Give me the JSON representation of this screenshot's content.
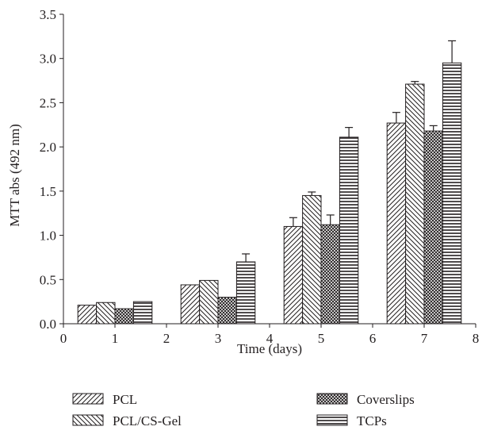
{
  "chart_data": {
    "type": "bar",
    "xlabel": "Time (days)",
    "ylabel": "MTT abs (492 nm)",
    "xlim": [
      0,
      8
    ],
    "ylim": [
      0,
      3.5
    ],
    "xticks": [
      "0",
      "1",
      "2",
      "3",
      "4",
      "5",
      "6",
      "7",
      "8"
    ],
    "yticks": [
      "0.0",
      "0.5",
      "1.0",
      "1.5",
      "2.0",
      "2.5",
      "3.0",
      "3.5"
    ],
    "x": [
      1,
      3,
      5,
      7
    ],
    "legend_position": "bottom",
    "series": [
      {
        "name": "PCL",
        "pattern": "diagonal-forward",
        "values": [
          0.21,
          0.44,
          1.1,
          2.27
        ],
        "errors": [
          0.0,
          0.0,
          0.1,
          0.12
        ]
      },
      {
        "name": "PCL/CS-Gel",
        "pattern": "diagonal-backward",
        "values": [
          0.24,
          0.49,
          1.45,
          2.71
        ],
        "errors": [
          0.0,
          0.0,
          0.04,
          0.03
        ]
      },
      {
        "name": "Coverslips",
        "pattern": "crosshatch",
        "values": [
          0.17,
          0.3,
          1.12,
          2.18
        ],
        "errors": [
          0.0,
          0.0,
          0.11,
          0.06
        ]
      },
      {
        "name": "TCPs",
        "pattern": "horizontal-lines",
        "values": [
          0.25,
          0.7,
          2.11,
          2.95
        ],
        "errors": [
          0.0,
          0.09,
          0.11,
          0.25
        ]
      }
    ],
    "colors": {
      "ink": "#231f20",
      "background": "#ffffff"
    }
  }
}
